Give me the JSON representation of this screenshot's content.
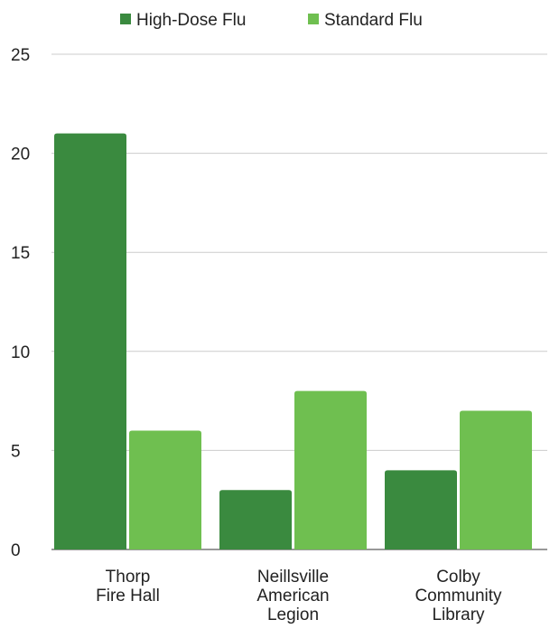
{
  "chart_data": {
    "type": "bar",
    "categories": [
      [
        "Thorp",
        "Fire Hall"
      ],
      [
        "Neillsville",
        "American",
        "Legion"
      ],
      [
        "Colby",
        "Community",
        "Library"
      ]
    ],
    "series": [
      {
        "name": "High-Dose Flu",
        "values": [
          21,
          3,
          4
        ],
        "color": "#3a8a3f"
      },
      {
        "name": "Standard Flu",
        "values": [
          6,
          8,
          7
        ],
        "color": "#6fbf50"
      }
    ],
    "ylim": [
      0,
      25
    ],
    "yticks": [
      "0",
      "5",
      "10",
      "15",
      "20",
      "25"
    ],
    "grid": true,
    "legend": "top-center",
    "gridline_color": "#cccccc"
  }
}
